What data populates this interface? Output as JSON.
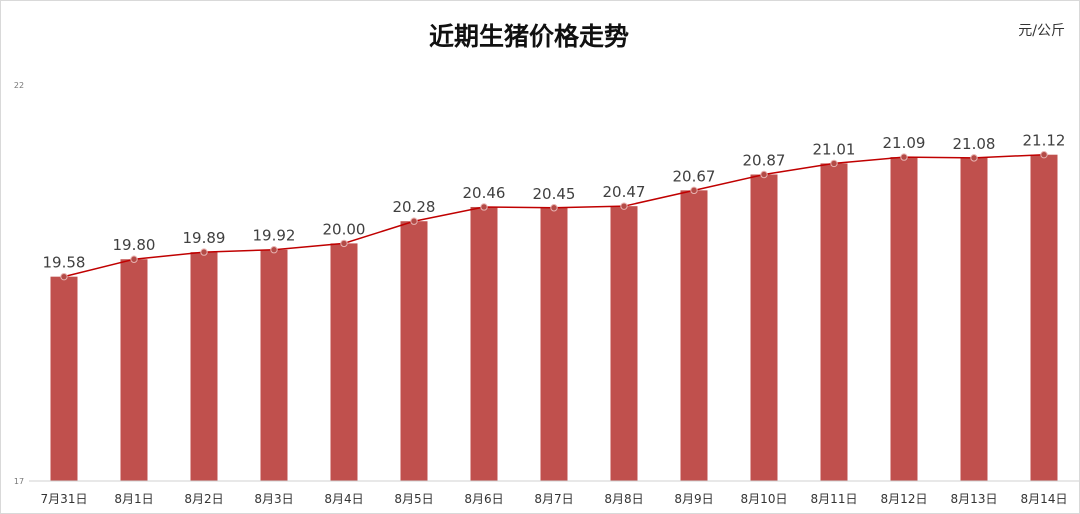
{
  "chart_data": {
    "type": "bar",
    "title": "近期生猪价格走势",
    "unit_label": "元/公斤",
    "categories": [
      "7月31日",
      "8月1日",
      "8月2日",
      "8月3日",
      "8月4日",
      "8月5日",
      "8月6日",
      "8月7日",
      "8月8日",
      "8月9日",
      "8月10日",
      "8月11日",
      "8月12日",
      "8月13日",
      "8月14日"
    ],
    "values": [
      19.58,
      19.8,
      19.89,
      19.92,
      20.0,
      20.28,
      20.46,
      20.45,
      20.47,
      20.67,
      20.87,
      21.01,
      21.09,
      21.08,
      21.12
    ],
    "data_labels": [
      "19.58",
      "19.80",
      "19.89",
      "19.92",
      "20.00",
      "20.28",
      "20.46",
      "20.45",
      "20.47",
      "20.67",
      "20.87",
      "21.01",
      "21.09",
      "21.08",
      "21.12"
    ],
    "ylim": [
      17,
      22
    ],
    "yticks": [
      17,
      22
    ],
    "grid": false,
    "legend": "none",
    "overlay_line": true,
    "colors": {
      "bar": "#c0504d",
      "line": "#c00000",
      "marker": "#b34b47"
    }
  }
}
